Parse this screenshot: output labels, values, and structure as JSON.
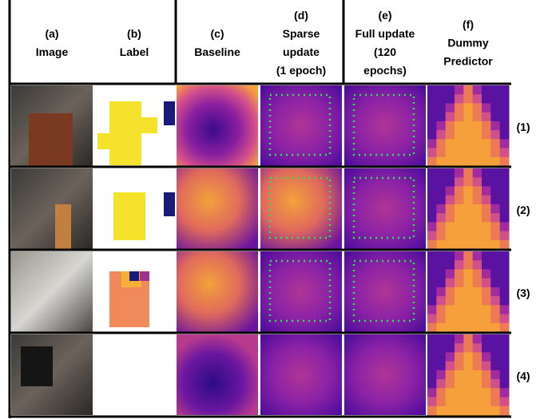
{
  "columns": [
    {
      "tag": "(a)",
      "lines": [
        "Image"
      ]
    },
    {
      "tag": "(b)",
      "lines": [
        "Label"
      ]
    },
    {
      "tag": "(c)",
      "lines": [
        "Baseline"
      ]
    },
    {
      "tag": "(d)",
      "lines": [
        "Sparse",
        "update",
        "(1 epoch)"
      ]
    },
    {
      "tag": "(e)",
      "lines": [
        "Full update",
        "(120",
        "epochs)"
      ]
    },
    {
      "tag": "(f)",
      "lines": [
        "Dummy",
        "Predictor"
      ]
    }
  ],
  "rows": [
    "(1)",
    "(2)",
    "(3)",
    "(4)"
  ]
}
